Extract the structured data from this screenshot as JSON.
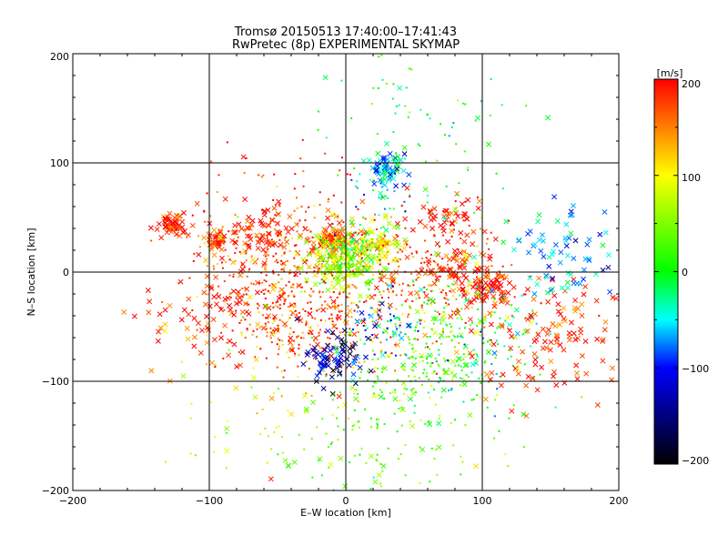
{
  "chart_data": {
    "type": "scatter",
    "title": "Tromsø 20150513 17:40:00–17:41:43",
    "subtitle": "RwPretec (8p) EXPERIMENTAL SKYMAP",
    "xlabel": "E–W location [km]",
    "ylabel": "N–S location [km]",
    "xlim": [
      -200,
      200
    ],
    "ylim": [
      -200,
      200
    ],
    "xticks": [
      "−200",
      "−100",
      "0",
      "100",
      "200"
    ],
    "yticks": [
      "−200",
      "−100",
      "0",
      "100",
      "200"
    ],
    "grid": true,
    "colorbar": {
      "label": "[m/s]",
      "range": [
        -200,
        200
      ],
      "ticks": [
        "200",
        "100",
        "0",
        "−100",
        "−200"
      ],
      "colors": [
        "#ff0000",
        "#ffff00",
        "#00ff00",
        "#00ffff",
        "#0000ff",
        "#000000"
      ]
    },
    "clusters": [
      {
        "x": -127,
        "y": 43,
        "r": 6,
        "n": 60,
        "vel": 195,
        "marker": "x"
      },
      {
        "x": -93,
        "y": 30,
        "r": 5,
        "n": 40,
        "vel": 190,
        "marker": "x"
      },
      {
        "x": -60,
        "y": 35,
        "r": 12,
        "n": 60,
        "vel": 185,
        "marker": "x"
      },
      {
        "x": -45,
        "y": 5,
        "r": 40,
        "n": 450,
        "vel": 170,
        "marker": "dot"
      },
      {
        "x": -10,
        "y": 32,
        "r": 8,
        "n": 80,
        "vel": 175,
        "marker": "x"
      },
      {
        "x": 0,
        "y": 10,
        "r": 14,
        "n": 180,
        "vel": 80,
        "marker": "x"
      },
      {
        "x": 5,
        "y": 20,
        "r": 12,
        "n": 120,
        "vel": 10,
        "marker": "dot"
      },
      {
        "x": 30,
        "y": 95,
        "r": 7,
        "n": 60,
        "vel": -55,
        "marker": "x"
      },
      {
        "x": 25,
        "y": 75,
        "r": 12,
        "n": 40,
        "vel": -60,
        "marker": "dot"
      },
      {
        "x": 30,
        "y": 25,
        "r": 8,
        "n": 40,
        "vel": 90,
        "marker": "x"
      },
      {
        "x": 60,
        "y": -5,
        "r": 35,
        "n": 250,
        "vel": 170,
        "marker": "dot"
      },
      {
        "x": 85,
        "y": 0,
        "r": 15,
        "n": 80,
        "vel": 185,
        "marker": "x"
      },
      {
        "x": 108,
        "y": -15,
        "r": 8,
        "n": 60,
        "vel": 195,
        "marker": "x"
      },
      {
        "x": 75,
        "y": 50,
        "r": 10,
        "n": 40,
        "vel": 185,
        "marker": "x"
      },
      {
        "x": -30,
        "y": -50,
        "r": 25,
        "n": 200,
        "vel": 170,
        "marker": "dot"
      },
      {
        "x": -10,
        "y": -80,
        "r": 12,
        "n": 80,
        "vel": -130,
        "marker": "x"
      },
      {
        "x": 60,
        "y": -70,
        "r": 35,
        "n": 300,
        "vel": 40,
        "marker": "dot"
      },
      {
        "x": 100,
        "y": -70,
        "r": 25,
        "n": 80,
        "vel": -30,
        "marker": "dot"
      },
      {
        "x": 30,
        "y": -50,
        "r": 15,
        "n": 60,
        "vel": -80,
        "marker": "dot"
      },
      {
        "x": 155,
        "y": -60,
        "r": 30,
        "n": 120,
        "vel": 185,
        "marker": "x"
      },
      {
        "x": 160,
        "y": 20,
        "r": 25,
        "n": 80,
        "vel": -60,
        "marker": "x"
      },
      {
        "x": -100,
        "y": -40,
        "r": 25,
        "n": 80,
        "vel": 190,
        "marker": "x"
      },
      {
        "x": 20,
        "y": -150,
        "r": 40,
        "n": 150,
        "vel": 40,
        "marker": "dot"
      },
      {
        "x": 60,
        "y": 130,
        "r": 40,
        "n": 80,
        "vel": 0,
        "marker": "dot"
      },
      {
        "x": -60,
        "y": -120,
        "r": 40,
        "n": 60,
        "vel": 100,
        "marker": "dot"
      }
    ]
  }
}
